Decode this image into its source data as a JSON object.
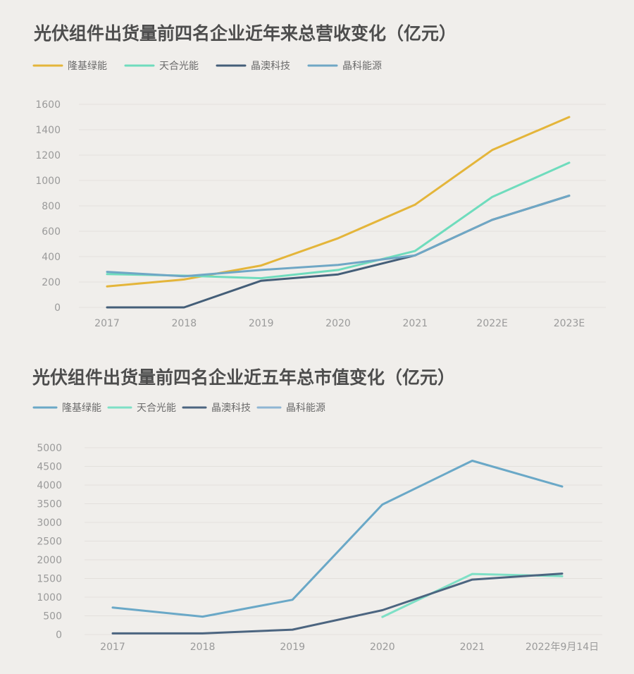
{
  "chart_data": [
    {
      "type": "line",
      "title": "光伏组件出货量前四名企业近年来总营收变化（亿元）",
      "categories": [
        "2017",
        "2018",
        "2019",
        "2020",
        "2021",
        "2022E",
        "2023E"
      ],
      "ylim": [
        0,
        1600
      ],
      "yticks": [
        "0",
        "200",
        "400",
        "600",
        "800",
        "1000",
        "1200",
        "1400",
        "1600"
      ],
      "legend_position": "top-left",
      "grid": true,
      "series": [
        {
          "name": "隆基绿能",
          "color": "#e4b53a",
          "values": [
            165,
            220,
            330,
            545,
            810,
            1240,
            1500
          ]
        },
        {
          "name": "天合光能",
          "color": "#6fdcbd",
          "values": [
            262,
            250,
            230,
            295,
            445,
            870,
            1140
          ]
        },
        {
          "name": "晶澳科技",
          "color": "#445e78",
          "values": [
            0,
            0,
            210,
            260,
            410,
            690,
            880
          ]
        },
        {
          "name": "晶科能源",
          "color": "#6fa7c5",
          "values": [
            280,
            245,
            295,
            335,
            410,
            690,
            880
          ]
        }
      ]
    },
    {
      "type": "line",
      "title": "光伏组件出货量前四名企业近五年总市值变化（亿元）",
      "categories": [
        "2017",
        "2018",
        "2019",
        "2020",
        "2021",
        "2022年9月14日"
      ],
      "ylim": [
        0,
        5000
      ],
      "yticks": [
        "0",
        "500",
        "1000",
        "1500",
        "2000",
        "2500",
        "3000",
        "3500",
        "4000",
        "4500",
        "5000"
      ],
      "legend_position": "top-left",
      "grid": true,
      "series": [
        {
          "name": "隆基绿能",
          "color": "#6aa8c7",
          "values": [
            720,
            480,
            930,
            3480,
            4650,
            3960
          ]
        },
        {
          "name": "天合光能",
          "color": "#7ee0c6",
          "values": [
            null,
            null,
            null,
            470,
            1620,
            1560
          ]
        },
        {
          "name": "晶澳科技",
          "color": "#4c6580",
          "values": [
            30,
            30,
            130,
            650,
            1470,
            1630
          ]
        },
        {
          "name": "晶科能源",
          "color": "#8fb6d3",
          "values": [
            null,
            null,
            null,
            null,
            null,
            null
          ]
        }
      ]
    }
  ]
}
